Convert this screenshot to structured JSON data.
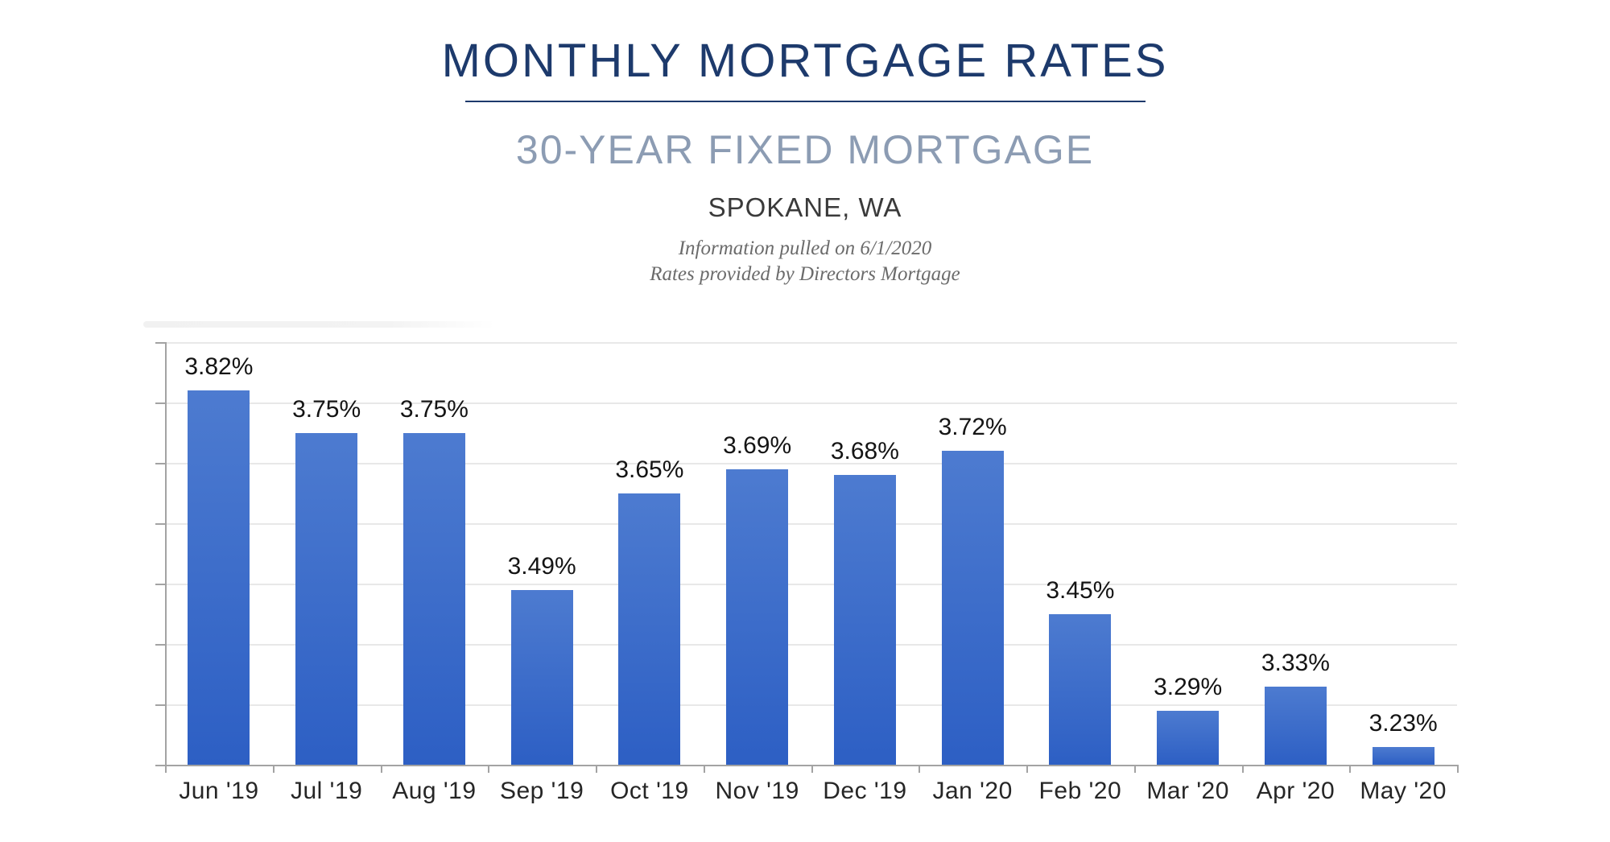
{
  "header": {
    "title": "MONTHLY MORTGAGE RATES",
    "subtitle": "30-YEAR FIXED MORTGAGE",
    "location": "SPOKANE, WA",
    "note_line1": "Information pulled on 6/1/2020",
    "note_line2": "Rates provided by Directors Mortgage"
  },
  "colors": {
    "title_navy": "#1d3a6c",
    "subtitle_slate": "#8c9cb3",
    "location_gray": "#3a3a3a",
    "note_gray": "#6b6b6b",
    "bar_gradient_top": "#4d7bd0",
    "bar_gradient_bottom": "#2d5fc4",
    "gridline": "#e8e8e8",
    "axis": "#a3a3a3",
    "bar_label_text": "#141414"
  },
  "chart_data": {
    "type": "bar",
    "categories": [
      "Jun '19",
      "Jul '19",
      "Aug '19",
      "Sep '19",
      "Oct '19",
      "Nov '19",
      "Dec '19",
      "Jan '20",
      "Feb '20",
      "Mar '20",
      "Apr '20",
      "May '20"
    ],
    "values": [
      3.82,
      3.75,
      3.75,
      3.49,
      3.65,
      3.69,
      3.68,
      3.72,
      3.45,
      3.29,
      3.33,
      3.23
    ],
    "value_labels": [
      "3.82%",
      "3.75%",
      "3.75%",
      "3.49%",
      "3.65%",
      "3.69%",
      "3.68%",
      "3.72%",
      "3.45%",
      "3.29%",
      "3.33%",
      "3.23%"
    ],
    "title": "MONTHLY MORTGAGE RATES",
    "subtitle": "30-YEAR FIXED MORTGAGE",
    "xlabel": "",
    "ylabel": "",
    "ylim": [
      3.2,
      3.9
    ],
    "grid_step": 0.1,
    "grid": true,
    "legend": false,
    "y_tick_labels_shown": false
  }
}
